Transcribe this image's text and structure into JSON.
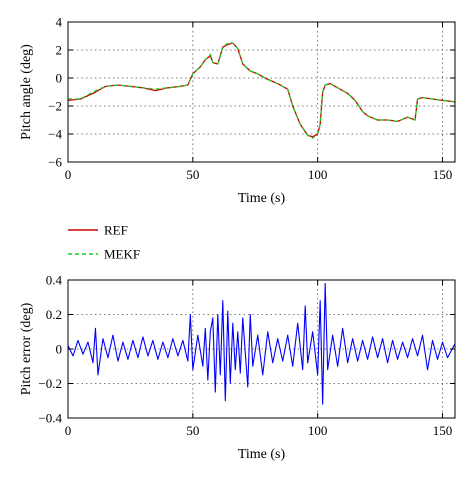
{
  "chart_data": [
    {
      "type": "line",
      "xlabel": "Time (s)",
      "ylabel": "Pitch angle (deg)",
      "xlim": [
        0,
        155
      ],
      "ylim": [
        -6,
        4
      ],
      "xticks": [
        0,
        50,
        100,
        150
      ],
      "yticks": [
        -6,
        -4,
        -2,
        0,
        2,
        4
      ],
      "grid": true,
      "legend": "below",
      "series": [
        {
          "name": "REF",
          "color": "#cc0000",
          "style": "solid",
          "x": [
            0,
            5,
            10,
            15,
            20,
            25,
            30,
            35,
            40,
            45,
            48,
            50,
            53,
            55,
            57,
            58,
            60,
            62,
            64,
            66,
            68,
            70,
            73,
            76,
            80,
            84,
            88,
            90,
            93,
            96,
            98,
            100,
            101,
            102,
            103,
            105,
            108,
            112,
            115,
            118,
            120,
            124,
            128,
            132,
            136,
            139,
            140,
            142,
            146,
            150,
            155
          ],
          "y": [
            -1.6,
            -1.5,
            -1.1,
            -0.6,
            -0.5,
            -0.6,
            -0.7,
            -0.9,
            -0.7,
            -0.6,
            -0.5,
            0.3,
            0.8,
            1.3,
            1.6,
            1.1,
            1.0,
            2.2,
            2.4,
            2.5,
            2.1,
            1.0,
            0.5,
            0.3,
            -0.1,
            -0.4,
            -0.8,
            -2.0,
            -3.3,
            -4.1,
            -4.2,
            -4.0,
            -3.3,
            -1.0,
            -0.5,
            -0.4,
            -0.7,
            -1.1,
            -1.6,
            -2.4,
            -2.7,
            -3.0,
            -3.0,
            -3.1,
            -2.8,
            -3.0,
            -1.5,
            -1.4,
            -1.5,
            -1.6,
            -1.7
          ]
        },
        {
          "name": "MEKF",
          "color": "#22cc22",
          "style": "dashed",
          "x": [
            0,
            5,
            10,
            15,
            20,
            25,
            30,
            35,
            40,
            45,
            48,
            50,
            53,
            55,
            57,
            58,
            60,
            62,
            64,
            66,
            68,
            70,
            73,
            76,
            80,
            84,
            88,
            90,
            93,
            96,
            98,
            100,
            101,
            102,
            103,
            105,
            108,
            112,
            115,
            118,
            120,
            124,
            128,
            132,
            136,
            139,
            140,
            142,
            146,
            150,
            155
          ],
          "y": [
            -1.5,
            -1.5,
            -1.0,
            -0.6,
            -0.5,
            -0.6,
            -0.7,
            -0.8,
            -0.7,
            -0.6,
            -0.5,
            0.3,
            0.8,
            1.3,
            1.7,
            1.1,
            1.0,
            2.2,
            2.5,
            2.5,
            2.1,
            1.0,
            0.5,
            0.3,
            -0.1,
            -0.4,
            -0.8,
            -2.0,
            -3.3,
            -4.1,
            -4.3,
            -4.0,
            -3.3,
            -1.0,
            -0.5,
            -0.4,
            -0.7,
            -1.1,
            -1.6,
            -2.4,
            -2.7,
            -3.0,
            -3.0,
            -3.1,
            -2.8,
            -3.0,
            -1.5,
            -1.4,
            -1.5,
            -1.6,
            -1.7
          ]
        }
      ]
    },
    {
      "type": "line",
      "xlabel": "Time (s)",
      "ylabel": "Pitch error (deg)",
      "xlim": [
        0,
        155
      ],
      "ylim": [
        -0.4,
        0.4
      ],
      "xticks": [
        0,
        50,
        100,
        150
      ],
      "yticks": [
        -0.4,
        -0.2,
        0,
        0.2,
        0.4
      ],
      "grid": true,
      "series": [
        {
          "color": "#0000ff",
          "x": [
            0,
            2,
            4,
            6,
            8,
            10,
            11,
            12,
            14,
            16,
            18,
            20,
            22,
            24,
            26,
            28,
            30,
            32,
            34,
            36,
            38,
            40,
            42,
            44,
            46,
            48,
            49,
            50,
            52,
            54,
            55,
            56,
            57,
            58,
            59,
            60,
            61,
            62,
            63,
            64,
            65,
            66,
            67,
            68,
            69,
            70,
            72,
            73,
            74,
            76,
            78,
            80,
            82,
            84,
            86,
            88,
            90,
            92,
            94,
            95,
            96,
            98,
            100,
            101,
            102,
            103,
            104,
            106,
            108,
            110,
            112,
            114,
            116,
            118,
            120,
            122,
            124,
            126,
            128,
            130,
            132,
            134,
            136,
            138,
            140,
            142,
            144,
            146,
            148,
            150,
            152,
            155
          ],
          "y": [
            0.02,
            -0.04,
            0.05,
            -0.03,
            0.04,
            -0.08,
            0.12,
            -0.15,
            0.06,
            -0.05,
            0.08,
            -0.07,
            0.04,
            -0.06,
            0.05,
            -0.05,
            0.07,
            -0.04,
            0.05,
            -0.06,
            0.04,
            -0.05,
            0.06,
            -0.04,
            0.05,
            -0.07,
            0.2,
            -0.12,
            0.08,
            -0.1,
            0.12,
            -0.18,
            0.1,
            0.18,
            -0.25,
            0.2,
            -0.15,
            0.28,
            -0.3,
            0.22,
            -0.2,
            0.15,
            -0.12,
            0.1,
            -0.14,
            0.18,
            -0.22,
            0.2,
            -0.1,
            0.08,
            -0.15,
            0.1,
            -0.08,
            0.06,
            -0.07,
            0.08,
            -0.1,
            0.15,
            -0.12,
            0.25,
            -0.08,
            0.1,
            -0.15,
            0.28,
            -0.32,
            0.38,
            -0.12,
            0.08,
            -0.1,
            0.12,
            -0.08,
            0.06,
            -0.07,
            0.05,
            -0.06,
            0.07,
            -0.05,
            0.06,
            -0.08,
            0.05,
            -0.06,
            0.04,
            -0.05,
            0.06,
            -0.04,
            0.08,
            -0.12,
            0.05,
            -0.06,
            0.04,
            -0.05,
            0.03
          ]
        }
      ]
    }
  ],
  "legend_entries": [
    "REF",
    "MEKF"
  ]
}
